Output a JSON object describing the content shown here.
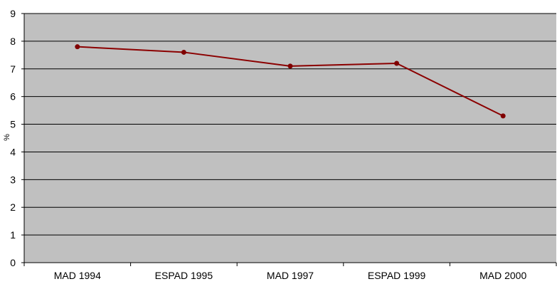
{
  "chart_data": {
    "type": "line",
    "title": "",
    "xlabel": "",
    "ylabel": "%",
    "categories": [
      "MAD 1994",
      "ESPAD 1995",
      "MAD 1997",
      "ESPAD 1999",
      "MAD 2000"
    ],
    "series": [
      {
        "values": [
          7.8,
          7.6,
          7.1,
          7.2,
          5.3
        ]
      }
    ],
    "ylim": [
      0,
      9
    ],
    "yticks": [
      "0",
      "1",
      "2",
      "3",
      "4",
      "5",
      "6",
      "7",
      "8",
      "9"
    ],
    "grid": true,
    "legend": "none",
    "colors": {
      "plot_background": "#c0c0c0",
      "gridline": "#000000",
      "series_line": "#8b0000",
      "series_marker": "#800000"
    }
  }
}
